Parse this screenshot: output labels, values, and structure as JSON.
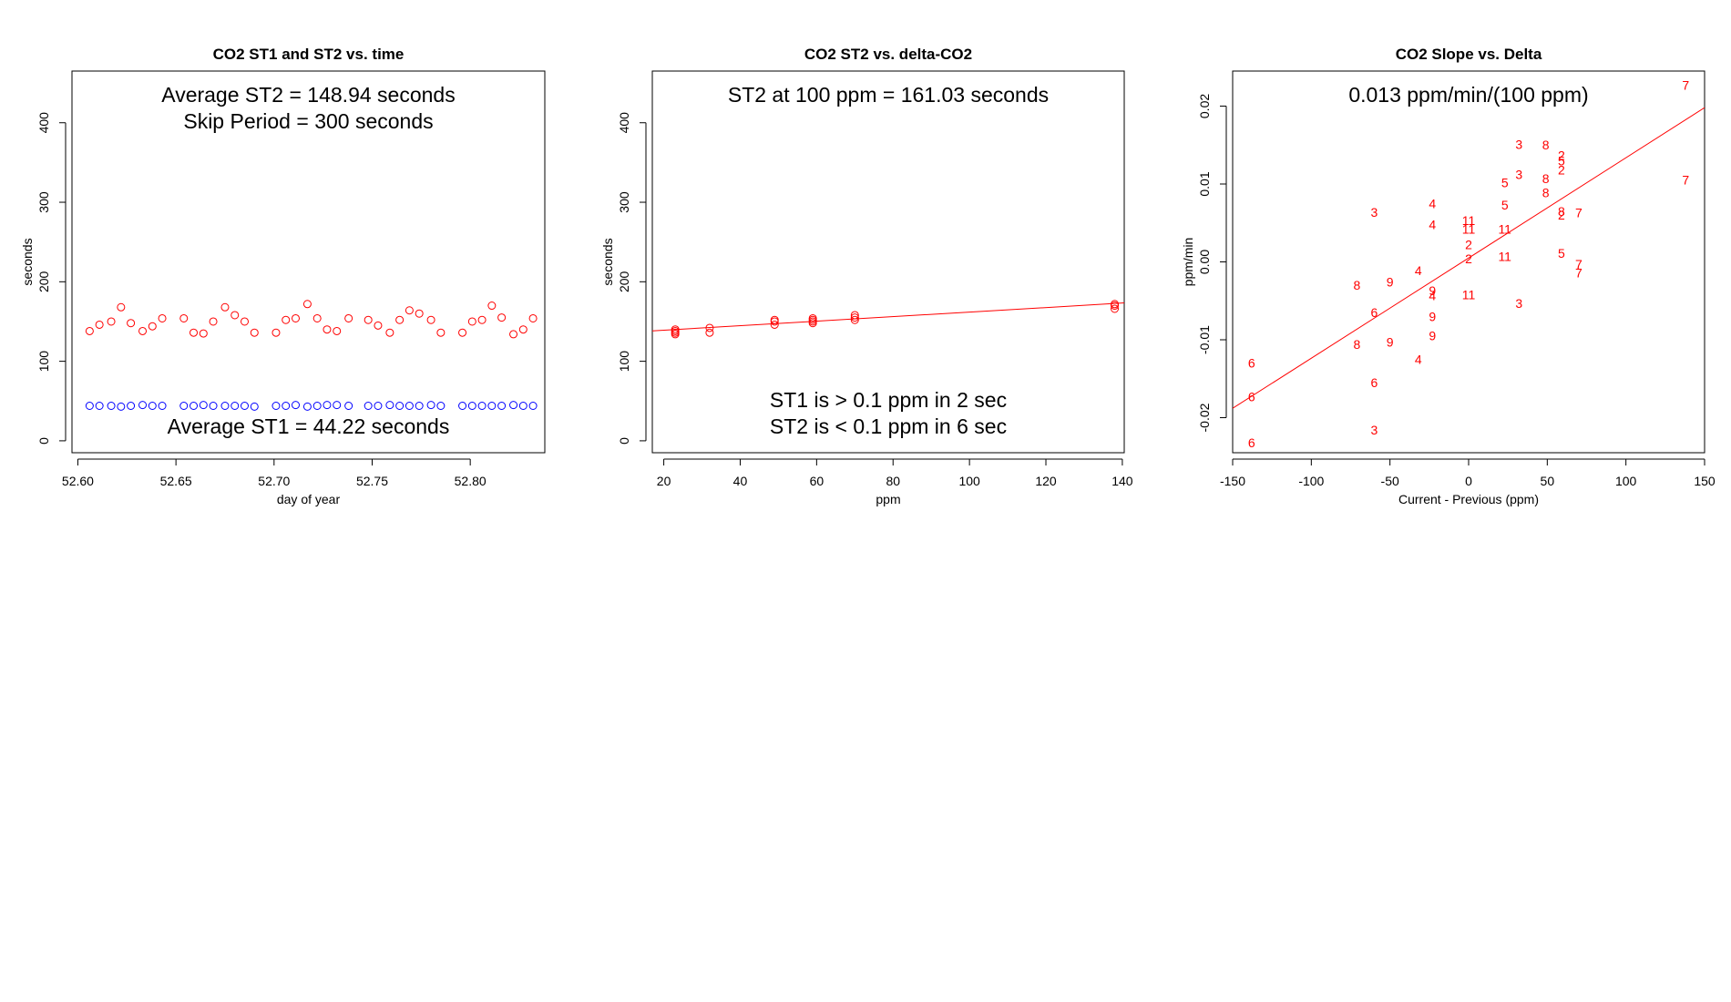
{
  "colors": {
    "st1": "#0000ff",
    "st2": "#ff0000",
    "fit": "#ff0000",
    "labels": "#ff0000"
  },
  "chart_data": [
    {
      "type": "scatter",
      "title": "CO2 ST1 and ST2 vs. time",
      "xlabel": "day of year",
      "ylabel": "seconds",
      "xlim": [
        52.597,
        52.838
      ],
      "ylim": [
        -15,
        465
      ],
      "xticks": [
        "52.60",
        "52.65",
        "52.70",
        "52.75",
        "52.80"
      ],
      "xtick_values": [
        52.6,
        52.65,
        52.7,
        52.75,
        52.8
      ],
      "yticks": [
        "0",
        "100",
        "200",
        "300",
        "400"
      ],
      "ytick_values": [
        0,
        100,
        200,
        300,
        400
      ],
      "annotations_top": [
        "Average ST2 =  148.94  seconds",
        "Skip Period =  300  seconds"
      ],
      "annotations_bottom": [
        "Average ST1 =  44.22  seconds"
      ],
      "series": [
        {
          "color_key": "st2",
          "x": [
            52.606,
            52.611,
            52.617,
            52.622,
            52.627,
            52.633,
            52.638,
            52.643,
            52.654,
            52.659,
            52.664,
            52.669,
            52.675,
            52.68,
            52.685,
            52.69,
            52.701,
            52.706,
            52.711,
            52.717,
            52.722,
            52.727,
            52.732,
            52.738,
            52.748,
            52.753,
            52.759,
            52.764,
            52.769,
            52.774,
            52.78,
            52.785,
            52.796,
            52.801,
            52.806,
            52.811,
            52.816,
            52.822,
            52.827,
            52.832
          ],
          "y": [
            138,
            146,
            150,
            168,
            148,
            138,
            144,
            154,
            154,
            136,
            135,
            150,
            168,
            158,
            150,
            136,
            136,
            152,
            154,
            172,
            154,
            140,
            138,
            154,
            152,
            145,
            136,
            152,
            164,
            160,
            152,
            136,
            136,
            150,
            152,
            170,
            155,
            134,
            140,
            154
          ]
        },
        {
          "color_key": "st1",
          "x": [
            52.606,
            52.611,
            52.617,
            52.622,
            52.627,
            52.633,
            52.638,
            52.643,
            52.654,
            52.659,
            52.664,
            52.669,
            52.675,
            52.68,
            52.685,
            52.69,
            52.701,
            52.706,
            52.711,
            52.717,
            52.722,
            52.727,
            52.732,
            52.738,
            52.748,
            52.753,
            52.759,
            52.764,
            52.769,
            52.774,
            52.78,
            52.785,
            52.796,
            52.801,
            52.806,
            52.811,
            52.816,
            52.822,
            52.827,
            52.832
          ],
          "y": [
            44,
            44,
            44,
            43,
            44,
            45,
            44,
            44,
            44,
            44,
            45,
            44,
            44,
            44,
            44,
            43,
            44,
            44,
            45,
            43,
            44,
            45,
            45,
            44,
            44,
            44,
            45,
            44,
            44,
            44,
            45,
            44,
            44,
            44,
            44,
            44,
            44,
            45,
            44,
            44
          ]
        }
      ]
    },
    {
      "type": "scatter",
      "title": "CO2 ST2 vs. delta-CO2",
      "xlabel": "ppm",
      "ylabel": "seconds",
      "xlim": [
        17,
        140.5
      ],
      "ylim": [
        -15,
        465
      ],
      "xticks": [
        "20",
        "40",
        "60",
        "80",
        "100",
        "120",
        "140"
      ],
      "xtick_values": [
        20,
        40,
        60,
        80,
        100,
        120,
        140
      ],
      "yticks": [
        "0",
        "100",
        "200",
        "300",
        "400"
      ],
      "ytick_values": [
        0,
        100,
        200,
        300,
        400
      ],
      "annotations_top": [
        "ST2 at 100 ppm =  161.03  seconds"
      ],
      "annotations_bottom": [
        "ST1 is > 0.1 ppm in 2 sec",
        "ST2 is < 0.1 ppm in 6 sec"
      ],
      "fit_line": {
        "x": [
          17,
          140.5
        ],
        "y": [
          138.2,
          173.4
        ]
      },
      "series": [
        {
          "color_key": "st2",
          "x": [
            23,
            23,
            23,
            23,
            32,
            32,
            49,
            49,
            49,
            59,
            59,
            59,
            59,
            70,
            70,
            70,
            138,
            138,
            138
          ],
          "y": [
            134,
            136,
            138,
            140,
            136,
            142,
            146,
            150,
            152,
            148,
            150,
            152,
            154,
            152,
            155,
            158,
            166,
            170,
            172
          ]
        }
      ]
    },
    {
      "type": "scatter",
      "title": "CO2 Slope vs. Delta",
      "xlabel": "Current - Previous (ppm)",
      "ylabel": "ppm/min",
      "xlim": [
        -150,
        150
      ],
      "ylim": [
        -0.0245,
        0.0245
      ],
      "xticks": [
        "-150",
        "-100",
        "-50",
        "0",
        "50",
        "100",
        "150"
      ],
      "xtick_values": [
        -150,
        -100,
        -50,
        0,
        50,
        100,
        150
      ],
      "yticks": [
        "-0.02",
        "-0.01",
        "0.00",
        "0.01",
        "0.02"
      ],
      "ytick_values": [
        -0.02,
        -0.01,
        0,
        0.01,
        0.02
      ],
      "annotations_top": [
        "0.013  ppm/min/(100 ppm)"
      ],
      "annotations_bottom": [],
      "fit_line": {
        "x": [
          -150,
          150
        ],
        "y": [
          -0.0188,
          0.0198
        ]
      },
      "series": [
        {
          "color_key": "labels",
          "points": [
            {
              "x": 138,
              "y": 0.0227,
              "label": "7"
            },
            {
              "x": 138,
              "y": 0.0105,
              "label": "7"
            },
            {
              "x": 70,
              "y": 0.0063,
              "label": "7"
            },
            {
              "x": 70,
              "y": -0.0003,
              "label": "7"
            },
            {
              "x": 70,
              "y": -0.0014,
              "label": "7"
            },
            {
              "x": 32,
              "y": 0.0151,
              "label": "3"
            },
            {
              "x": 32,
              "y": 0.0112,
              "label": "3"
            },
            {
              "x": -60,
              "y": 0.0064,
              "label": "3"
            },
            {
              "x": 32,
              "y": -0.0053,
              "label": "3"
            },
            {
              "x": -60,
              "y": -0.0216,
              "label": "3"
            },
            {
              "x": 49,
              "y": 0.015,
              "label": "8"
            },
            {
              "x": 49,
              "y": 0.0107,
              "label": "8"
            },
            {
              "x": 49,
              "y": 0.0089,
              "label": "8"
            },
            {
              "x": 59,
              "y": 0.0065,
              "label": "8"
            },
            {
              "x": -71,
              "y": -0.003,
              "label": "8"
            },
            {
              "x": -71,
              "y": -0.0106,
              "label": "8"
            },
            {
              "x": 59,
              "y": 0.0137,
              "label": "2"
            },
            {
              "x": 59,
              "y": 0.0118,
              "label": "2"
            },
            {
              "x": 59,
              "y": 0.006,
              "label": "2"
            },
            {
              "x": 0,
              "y": 0.0022,
              "label": "2"
            },
            {
              "x": 0,
              "y": 0.0004,
              "label": "2"
            },
            {
              "x": 59,
              "y": 0.013,
              "label": "5"
            },
            {
              "x": 23,
              "y": 0.0102,
              "label": "5"
            },
            {
              "x": 23,
              "y": 0.0073,
              "label": "5"
            },
            {
              "x": 59,
              "y": 0.0011,
              "label": "5"
            },
            {
              "x": -23,
              "y": 0.0075,
              "label": "4"
            },
            {
              "x": -23,
              "y": 0.0048,
              "label": "4"
            },
            {
              "x": -32,
              "y": -0.0011,
              "label": "4"
            },
            {
              "x": -23,
              "y": -0.0043,
              "label": "4"
            },
            {
              "x": -32,
              "y": -0.0125,
              "label": "4"
            },
            {
              "x": 0,
              "y": 0.0053,
              "label": "11"
            },
            {
              "x": 0,
              "y": 0.0042,
              "label": "11"
            },
            {
              "x": 23,
              "y": 0.0042,
              "label": "11"
            },
            {
              "x": 23,
              "y": 0.0007,
              "label": "11"
            },
            {
              "x": 0,
              "y": -0.0042,
              "label": "11"
            },
            {
              "x": -50,
              "y": -0.0026,
              "label": "9"
            },
            {
              "x": -23,
              "y": -0.0037,
              "label": "9"
            },
            {
              "x": -23,
              "y": -0.007,
              "label": "9"
            },
            {
              "x": -23,
              "y": -0.0095,
              "label": "9"
            },
            {
              "x": -50,
              "y": -0.0103,
              "label": "9"
            },
            {
              "x": -60,
              "y": -0.0065,
              "label": "6"
            },
            {
              "x": -60,
              "y": -0.0155,
              "label": "6"
            },
            {
              "x": -138,
              "y": -0.013,
              "label": "6"
            },
            {
              "x": -138,
              "y": -0.0173,
              "label": "6"
            },
            {
              "x": -138,
              "y": -0.0232,
              "label": "6"
            }
          ]
        }
      ]
    }
  ]
}
